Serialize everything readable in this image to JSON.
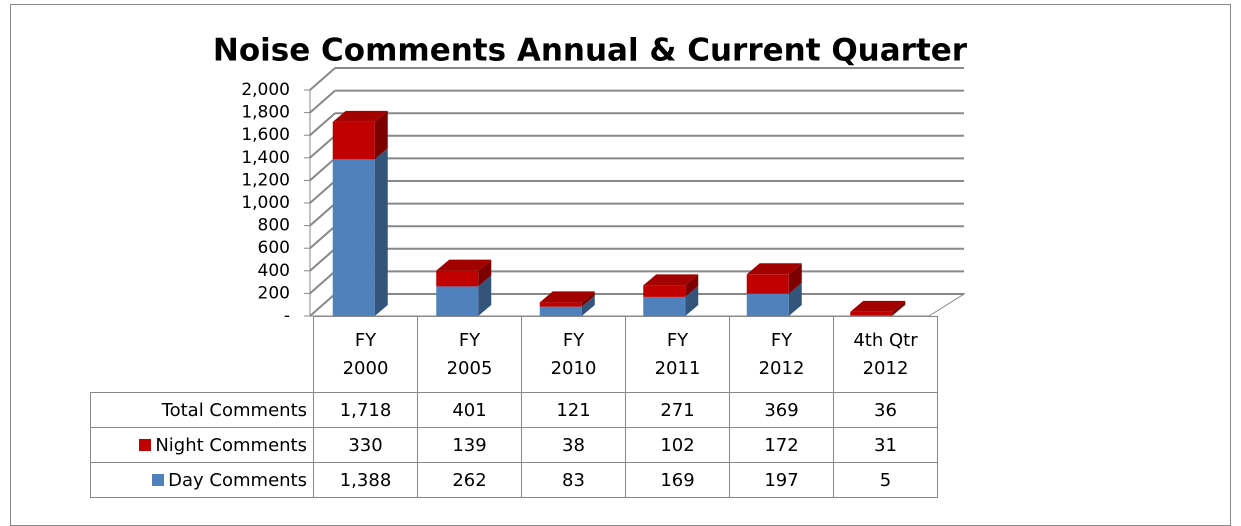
{
  "chart_data": {
    "type": "stacked_bar_3d",
    "title": "Noise Comments Annual & Current Quarter",
    "categories": [
      "FY\n2000",
      "FY\n2005",
      "FY\n2010",
      "FY\n2011",
      "FY\n2012",
      "4th Qtr\n2012"
    ],
    "series": [
      {
        "name": "Day Comments",
        "color": "#4f81bd",
        "values": [
          1388,
          262,
          83,
          169,
          197,
          5
        ],
        "value_labels": [
          "1,388",
          "262",
          "83",
          "169",
          "197",
          "5"
        ]
      },
      {
        "name": "Night Comments",
        "color": "#c00000",
        "values": [
          330,
          139,
          38,
          102,
          172,
          31
        ],
        "value_labels": [
          "330",
          "139",
          "38",
          "102",
          "172",
          "31"
        ]
      }
    ],
    "totals": {
      "name": "Total Comments",
      "values": [
        1718,
        401,
        121,
        271,
        369,
        36
      ],
      "value_labels": [
        "1,718",
        "401",
        "121",
        "271",
        "369",
        "36"
      ]
    },
    "ylim": [
      0,
      2000
    ],
    "yticks": [
      {
        "value": 0,
        "label": "-"
      },
      200,
      400,
      600,
      800,
      {
        "value": 1000,
        "label": "1,000"
      },
      {
        "value": 1200,
        "label": "1,200"
      },
      {
        "value": 1400,
        "label": "1,400"
      },
      {
        "value": 1600,
        "label": "1,600"
      },
      {
        "value": 1800,
        "label": "1,800"
      },
      {
        "value": 2000,
        "label": "2,000"
      }
    ],
    "grid": true
  }
}
